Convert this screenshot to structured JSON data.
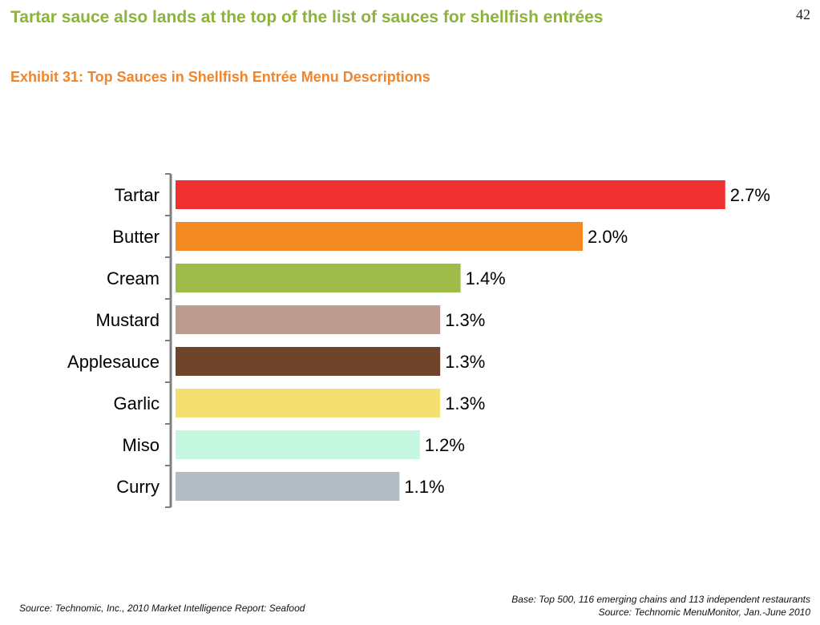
{
  "slide": {
    "headline": "Tartar sauce also lands at the top of the list of sauces for shellfish entrées",
    "page_number": "42",
    "footer_left": "Source: Technomic, Inc., 2010 Market Intelligence Report: Seafood",
    "footer_right_line1": "Base: Top 500, 116 emerging chains and 113 independent restaurants",
    "footer_right_line2": "Source: Technomic MenuMonitor, Jan.-June 2010"
  },
  "chart_data": {
    "type": "bar",
    "orientation": "horizontal",
    "title": "Exhibit 31: Top Sauces in Shellfish Entrée Menu Descriptions",
    "categories": [
      "Tartar",
      "Butter",
      "Cream",
      "Mustard",
      "Applesauce",
      "Garlic",
      "Miso",
      "Curry"
    ],
    "values": [
      2.7,
      2.0,
      1.4,
      1.3,
      1.3,
      1.3,
      1.2,
      1.1
    ],
    "value_labels": [
      "2.7%",
      "2.0%",
      "1.4%",
      "1.3%",
      "1.3%",
      "1.3%",
      "1.2%",
      "1.1%"
    ],
    "colors": [
      "#ee3130",
      "#f58a23",
      "#9fbb4a",
      "#bd9b8f",
      "#6e442b",
      "#f4df71",
      "#c6f7e1",
      "#b1bcc3"
    ],
    "unit": "%",
    "xlabel": "",
    "ylabel": "",
    "grid": false,
    "legend": "none"
  }
}
